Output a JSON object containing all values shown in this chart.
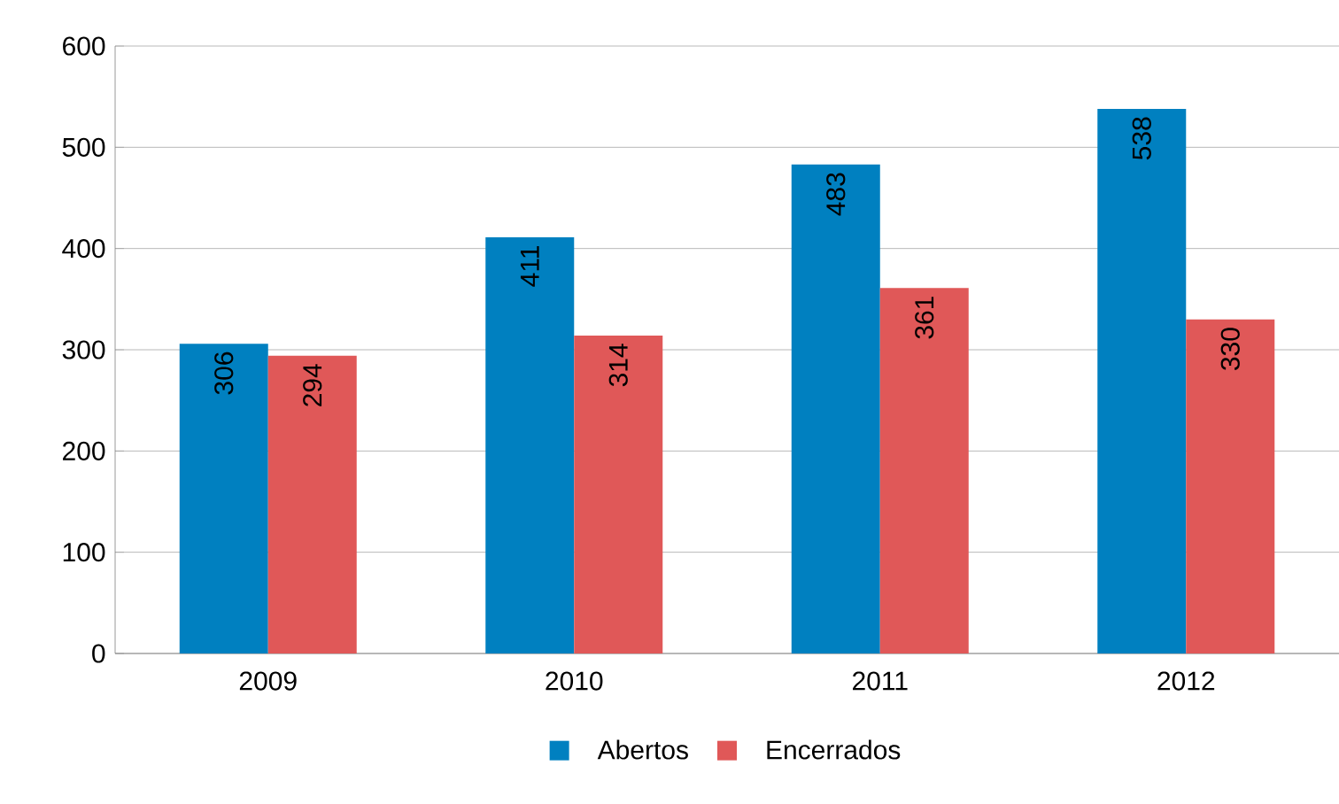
{
  "chart_data": {
    "type": "bar",
    "categories": [
      "2009",
      "2010",
      "2011",
      "2012"
    ],
    "series": [
      {
        "name": "Abertos",
        "color": "#0080c0",
        "values": [
          306,
          411,
          483,
          538
        ]
      },
      {
        "name": "Encerrados",
        "color": "#e05858",
        "values": [
          294,
          314,
          361,
          330
        ]
      }
    ],
    "ylim": [
      0,
      600
    ],
    "yticks": [
      0,
      100,
      200,
      300,
      400,
      500,
      600
    ],
    "grid": "y",
    "legend": "bottom",
    "data_labels": true
  }
}
